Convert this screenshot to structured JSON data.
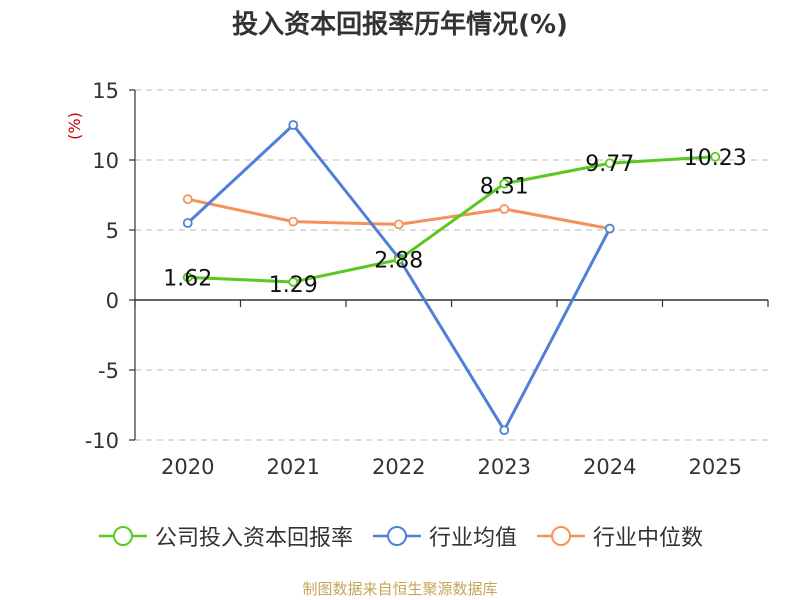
{
  "chart_data": {
    "type": "line",
    "title": "投入资本回报率历年情况(%)",
    "ylabel": "(%)",
    "categories": [
      "2020",
      "2021",
      "2022",
      "2023",
      "2024",
      "2025"
    ],
    "ylim": [
      -10,
      15
    ],
    "yticks": [
      -10,
      -5,
      0,
      5,
      10,
      15
    ],
    "grid": true,
    "series": [
      {
        "name": "公司投入资本回报率",
        "color": "#5ac81e",
        "values": [
          1.62,
          1.29,
          2.88,
          8.31,
          9.77,
          10.23
        ],
        "labels": [
          "1.62",
          "1.29",
          "2.88",
          "8.31",
          "9.77",
          "10.23"
        ]
      },
      {
        "name": "行业均值",
        "color": "#4f7fd9",
        "values": [
          5.5,
          12.5,
          3.0,
          -9.3,
          5.1,
          null
        ]
      },
      {
        "name": "行业中位数",
        "color": "#f4925a",
        "values": [
          7.2,
          5.6,
          5.4,
          6.5,
          5.1,
          null
        ]
      }
    ],
    "legend_position": "bottom",
    "source": "制图数据来自恒生聚源数据库"
  }
}
